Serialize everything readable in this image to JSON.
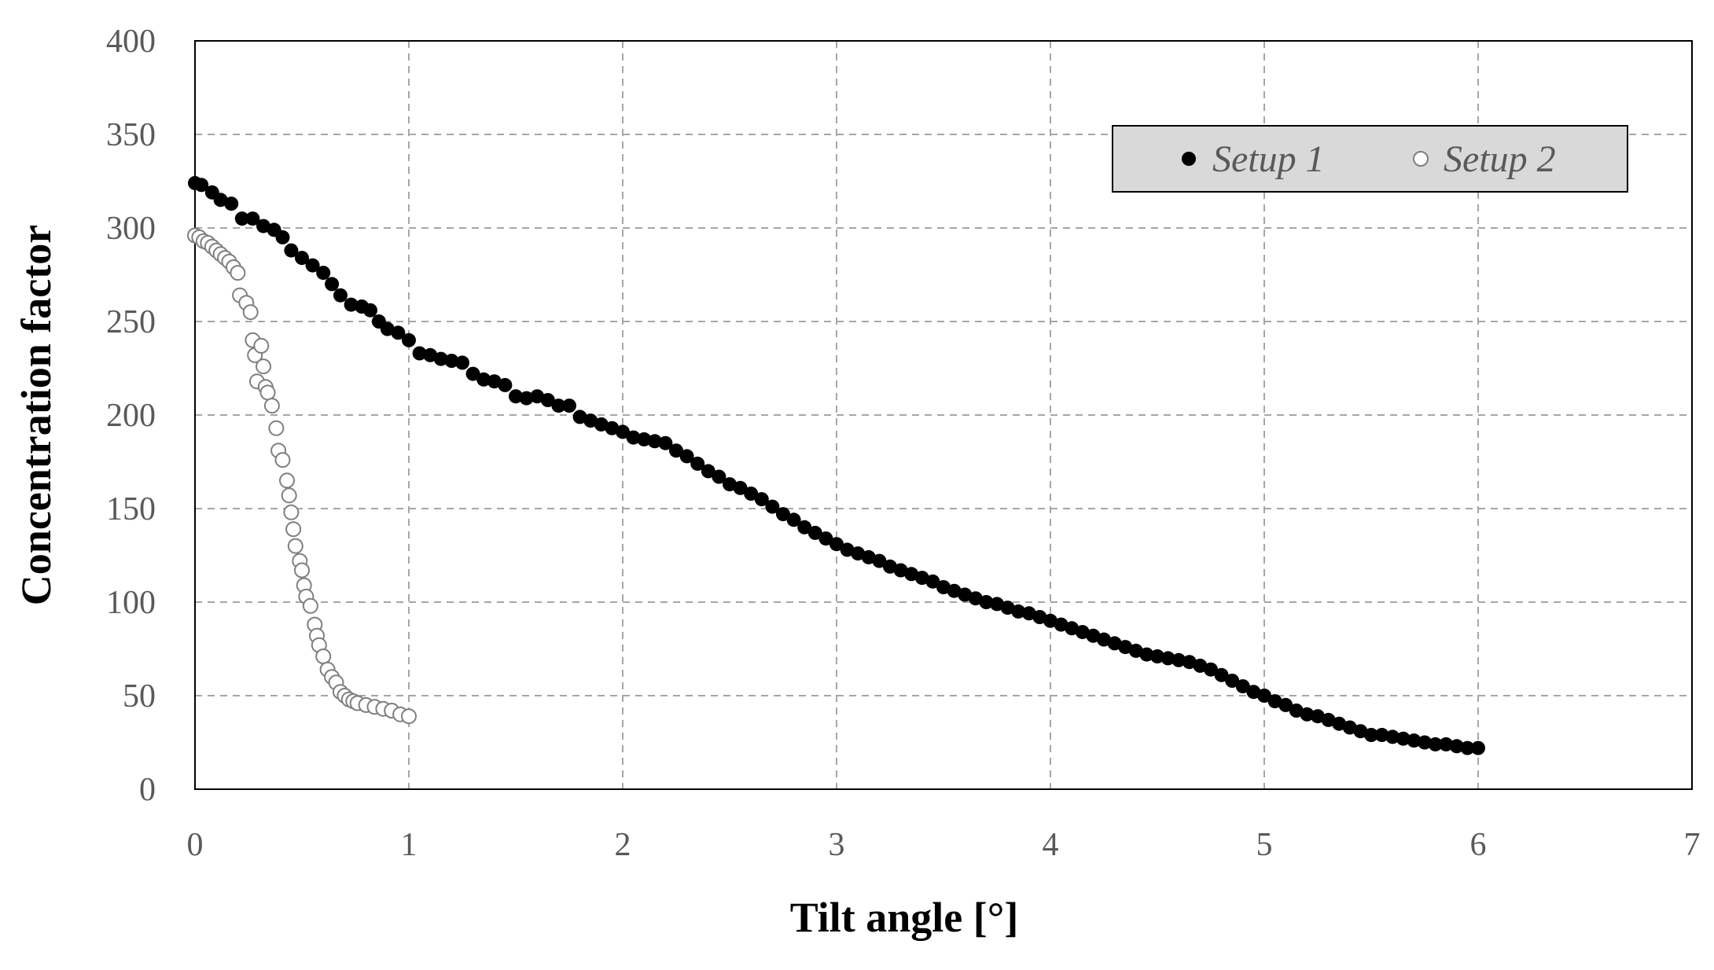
{
  "chart_data": {
    "type": "scatter",
    "title": "",
    "xlabel": "Tilt angle [°]",
    "ylabel": "Concentration factor",
    "xlim": [
      0,
      7
    ],
    "ylim": [
      0,
      400
    ],
    "x_ticks": [
      "0",
      "1",
      "2",
      "3",
      "4",
      "5",
      "6",
      "7"
    ],
    "y_ticks": [
      "0",
      "50",
      "100",
      "150",
      "200",
      "250",
      "300",
      "350",
      "400"
    ],
    "grid": true,
    "legend_position": "top-right",
    "series": [
      {
        "name": "Setup 1",
        "marker": "filled-circle",
        "color": "#000000",
        "points": [
          [
            0.0,
            324
          ],
          [
            0.03,
            323
          ],
          [
            0.08,
            319
          ],
          [
            0.12,
            315
          ],
          [
            0.17,
            313
          ],
          [
            0.22,
            305
          ],
          [
            0.27,
            305
          ],
          [
            0.32,
            301
          ],
          [
            0.37,
            299
          ],
          [
            0.41,
            295
          ],
          [
            0.45,
            288
          ],
          [
            0.5,
            284
          ],
          [
            0.55,
            280
          ],
          [
            0.6,
            276
          ],
          [
            0.64,
            270
          ],
          [
            0.68,
            264
          ],
          [
            0.73,
            259
          ],
          [
            0.78,
            258
          ],
          [
            0.82,
            256
          ],
          [
            0.86,
            250
          ],
          [
            0.9,
            246
          ],
          [
            0.95,
            244
          ],
          [
            1.0,
            240
          ],
          [
            1.05,
            233
          ],
          [
            1.1,
            232
          ],
          [
            1.15,
            230
          ],
          [
            1.2,
            229
          ],
          [
            1.25,
            228
          ],
          [
            1.3,
            222
          ],
          [
            1.35,
            219
          ],
          [
            1.4,
            218
          ],
          [
            1.45,
            216
          ],
          [
            1.5,
            210
          ],
          [
            1.55,
            209
          ],
          [
            1.6,
            210
          ],
          [
            1.65,
            208
          ],
          [
            1.7,
            205
          ],
          [
            1.75,
            205
          ],
          [
            1.8,
            199
          ],
          [
            1.85,
            197
          ],
          [
            1.9,
            195
          ],
          [
            1.95,
            193
          ],
          [
            2.0,
            191
          ],
          [
            2.05,
            188
          ],
          [
            2.1,
            187
          ],
          [
            2.15,
            186
          ],
          [
            2.2,
            185
          ],
          [
            2.25,
            181
          ],
          [
            2.3,
            178
          ],
          [
            2.35,
            174
          ],
          [
            2.4,
            170
          ],
          [
            2.45,
            167
          ],
          [
            2.5,
            163
          ],
          [
            2.55,
            161
          ],
          [
            2.6,
            158
          ],
          [
            2.65,
            155
          ],
          [
            2.7,
            151
          ],
          [
            2.75,
            147
          ],
          [
            2.8,
            144
          ],
          [
            2.85,
            140
          ],
          [
            2.9,
            137
          ],
          [
            2.95,
            134
          ],
          [
            3.0,
            131
          ],
          [
            3.05,
            128
          ],
          [
            3.1,
            126
          ],
          [
            3.15,
            124
          ],
          [
            3.2,
            122
          ],
          [
            3.25,
            119
          ],
          [
            3.3,
            117
          ],
          [
            3.35,
            115
          ],
          [
            3.4,
            113
          ],
          [
            3.45,
            111
          ],
          [
            3.5,
            108
          ],
          [
            3.55,
            106
          ],
          [
            3.6,
            104
          ],
          [
            3.65,
            102
          ],
          [
            3.7,
            100
          ],
          [
            3.75,
            99
          ],
          [
            3.8,
            97
          ],
          [
            3.85,
            95
          ],
          [
            3.9,
            94
          ],
          [
            3.95,
            92
          ],
          [
            4.0,
            90
          ],
          [
            4.05,
            88
          ],
          [
            4.1,
            86
          ],
          [
            4.15,
            84
          ],
          [
            4.2,
            82
          ],
          [
            4.25,
            80
          ],
          [
            4.3,
            78
          ],
          [
            4.35,
            76
          ],
          [
            4.4,
            74
          ],
          [
            4.45,
            72
          ],
          [
            4.5,
            71
          ],
          [
            4.55,
            70
          ],
          [
            4.6,
            69
          ],
          [
            4.65,
            68
          ],
          [
            4.7,
            66
          ],
          [
            4.75,
            64
          ],
          [
            4.8,
            61
          ],
          [
            4.85,
            58
          ],
          [
            4.9,
            55
          ],
          [
            4.95,
            52
          ],
          [
            5.0,
            50
          ],
          [
            5.05,
            47
          ],
          [
            5.1,
            45
          ],
          [
            5.15,
            42
          ],
          [
            5.2,
            40
          ],
          [
            5.25,
            39
          ],
          [
            5.3,
            37
          ],
          [
            5.35,
            35
          ],
          [
            5.4,
            33
          ],
          [
            5.45,
            31
          ],
          [
            5.5,
            29
          ],
          [
            5.55,
            29
          ],
          [
            5.6,
            28
          ],
          [
            5.65,
            27
          ],
          [
            5.7,
            26
          ],
          [
            5.75,
            25
          ],
          [
            5.8,
            24
          ],
          [
            5.85,
            24
          ],
          [
            5.9,
            23
          ],
          [
            5.95,
            22
          ],
          [
            6.0,
            22
          ]
        ]
      },
      {
        "name": "Setup 2",
        "marker": "open-circle",
        "color": "#7f7f7f",
        "points": [
          [
            0.0,
            296
          ],
          [
            0.02,
            295
          ],
          [
            0.04,
            293
          ],
          [
            0.06,
            292
          ],
          [
            0.08,
            290
          ],
          [
            0.1,
            288
          ],
          [
            0.12,
            286
          ],
          [
            0.14,
            284
          ],
          [
            0.16,
            282
          ],
          [
            0.18,
            279
          ],
          [
            0.2,
            276
          ],
          [
            0.21,
            264
          ],
          [
            0.24,
            260
          ],
          [
            0.26,
            255
          ],
          [
            0.27,
            240
          ],
          [
            0.28,
            232
          ],
          [
            0.29,
            218
          ],
          [
            0.31,
            237
          ],
          [
            0.32,
            226
          ],
          [
            0.33,
            215
          ],
          [
            0.34,
            212
          ],
          [
            0.36,
            205
          ],
          [
            0.38,
            193
          ],
          [
            0.39,
            181
          ],
          [
            0.41,
            176
          ],
          [
            0.43,
            165
          ],
          [
            0.44,
            157
          ],
          [
            0.45,
            148
          ],
          [
            0.46,
            139
          ],
          [
            0.47,
            130
          ],
          [
            0.49,
            122
          ],
          [
            0.5,
            117
          ],
          [
            0.51,
            109
          ],
          [
            0.52,
            103
          ],
          [
            0.54,
            98
          ],
          [
            0.56,
            88
          ],
          [
            0.57,
            82
          ],
          [
            0.58,
            77
          ],
          [
            0.6,
            71
          ],
          [
            0.62,
            64
          ],
          [
            0.64,
            60
          ],
          [
            0.66,
            57
          ],
          [
            0.68,
            52
          ],
          [
            0.7,
            50
          ],
          [
            0.72,
            48
          ],
          [
            0.74,
            47
          ],
          [
            0.76,
            46
          ],
          [
            0.8,
            45
          ],
          [
            0.84,
            44
          ],
          [
            0.88,
            43
          ],
          [
            0.92,
            42
          ],
          [
            0.96,
            40
          ],
          [
            1.0,
            39
          ]
        ]
      }
    ]
  }
}
